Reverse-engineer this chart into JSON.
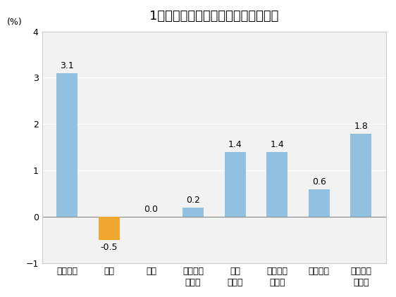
{
  "title": "1月份居民消费价格分类别环比涨跌幅",
  "ylabel": "(%)",
  "categories": [
    "食品烟酒",
    "衣着",
    "居住",
    "生活用品\n及服务",
    "交通\n和通信",
    "教育文化\n和娱乐",
    "医疗保健",
    "其他用品\n和服务"
  ],
  "values": [
    3.1,
    -0.5,
    0.0,
    0.2,
    1.4,
    1.4,
    0.6,
    1.8
  ],
  "bar_colors": [
    "#92C0E0",
    "#F0A830",
    "#92C0E0",
    "#92C0E0",
    "#92C0E0",
    "#92C0E0",
    "#92C0E0",
    "#92C0E0"
  ],
  "ylim": [
    -1.0,
    4.0
  ],
  "yticks": [
    -1.0,
    0.0,
    1.0,
    2.0,
    3.0,
    4.0
  ],
  "background_color": "#ffffff",
  "plot_bg_color": "#f2f2f2",
  "title_fontsize": 13,
  "label_fontsize": 9,
  "tick_fontsize": 9,
  "bar_label_fontsize": 9
}
